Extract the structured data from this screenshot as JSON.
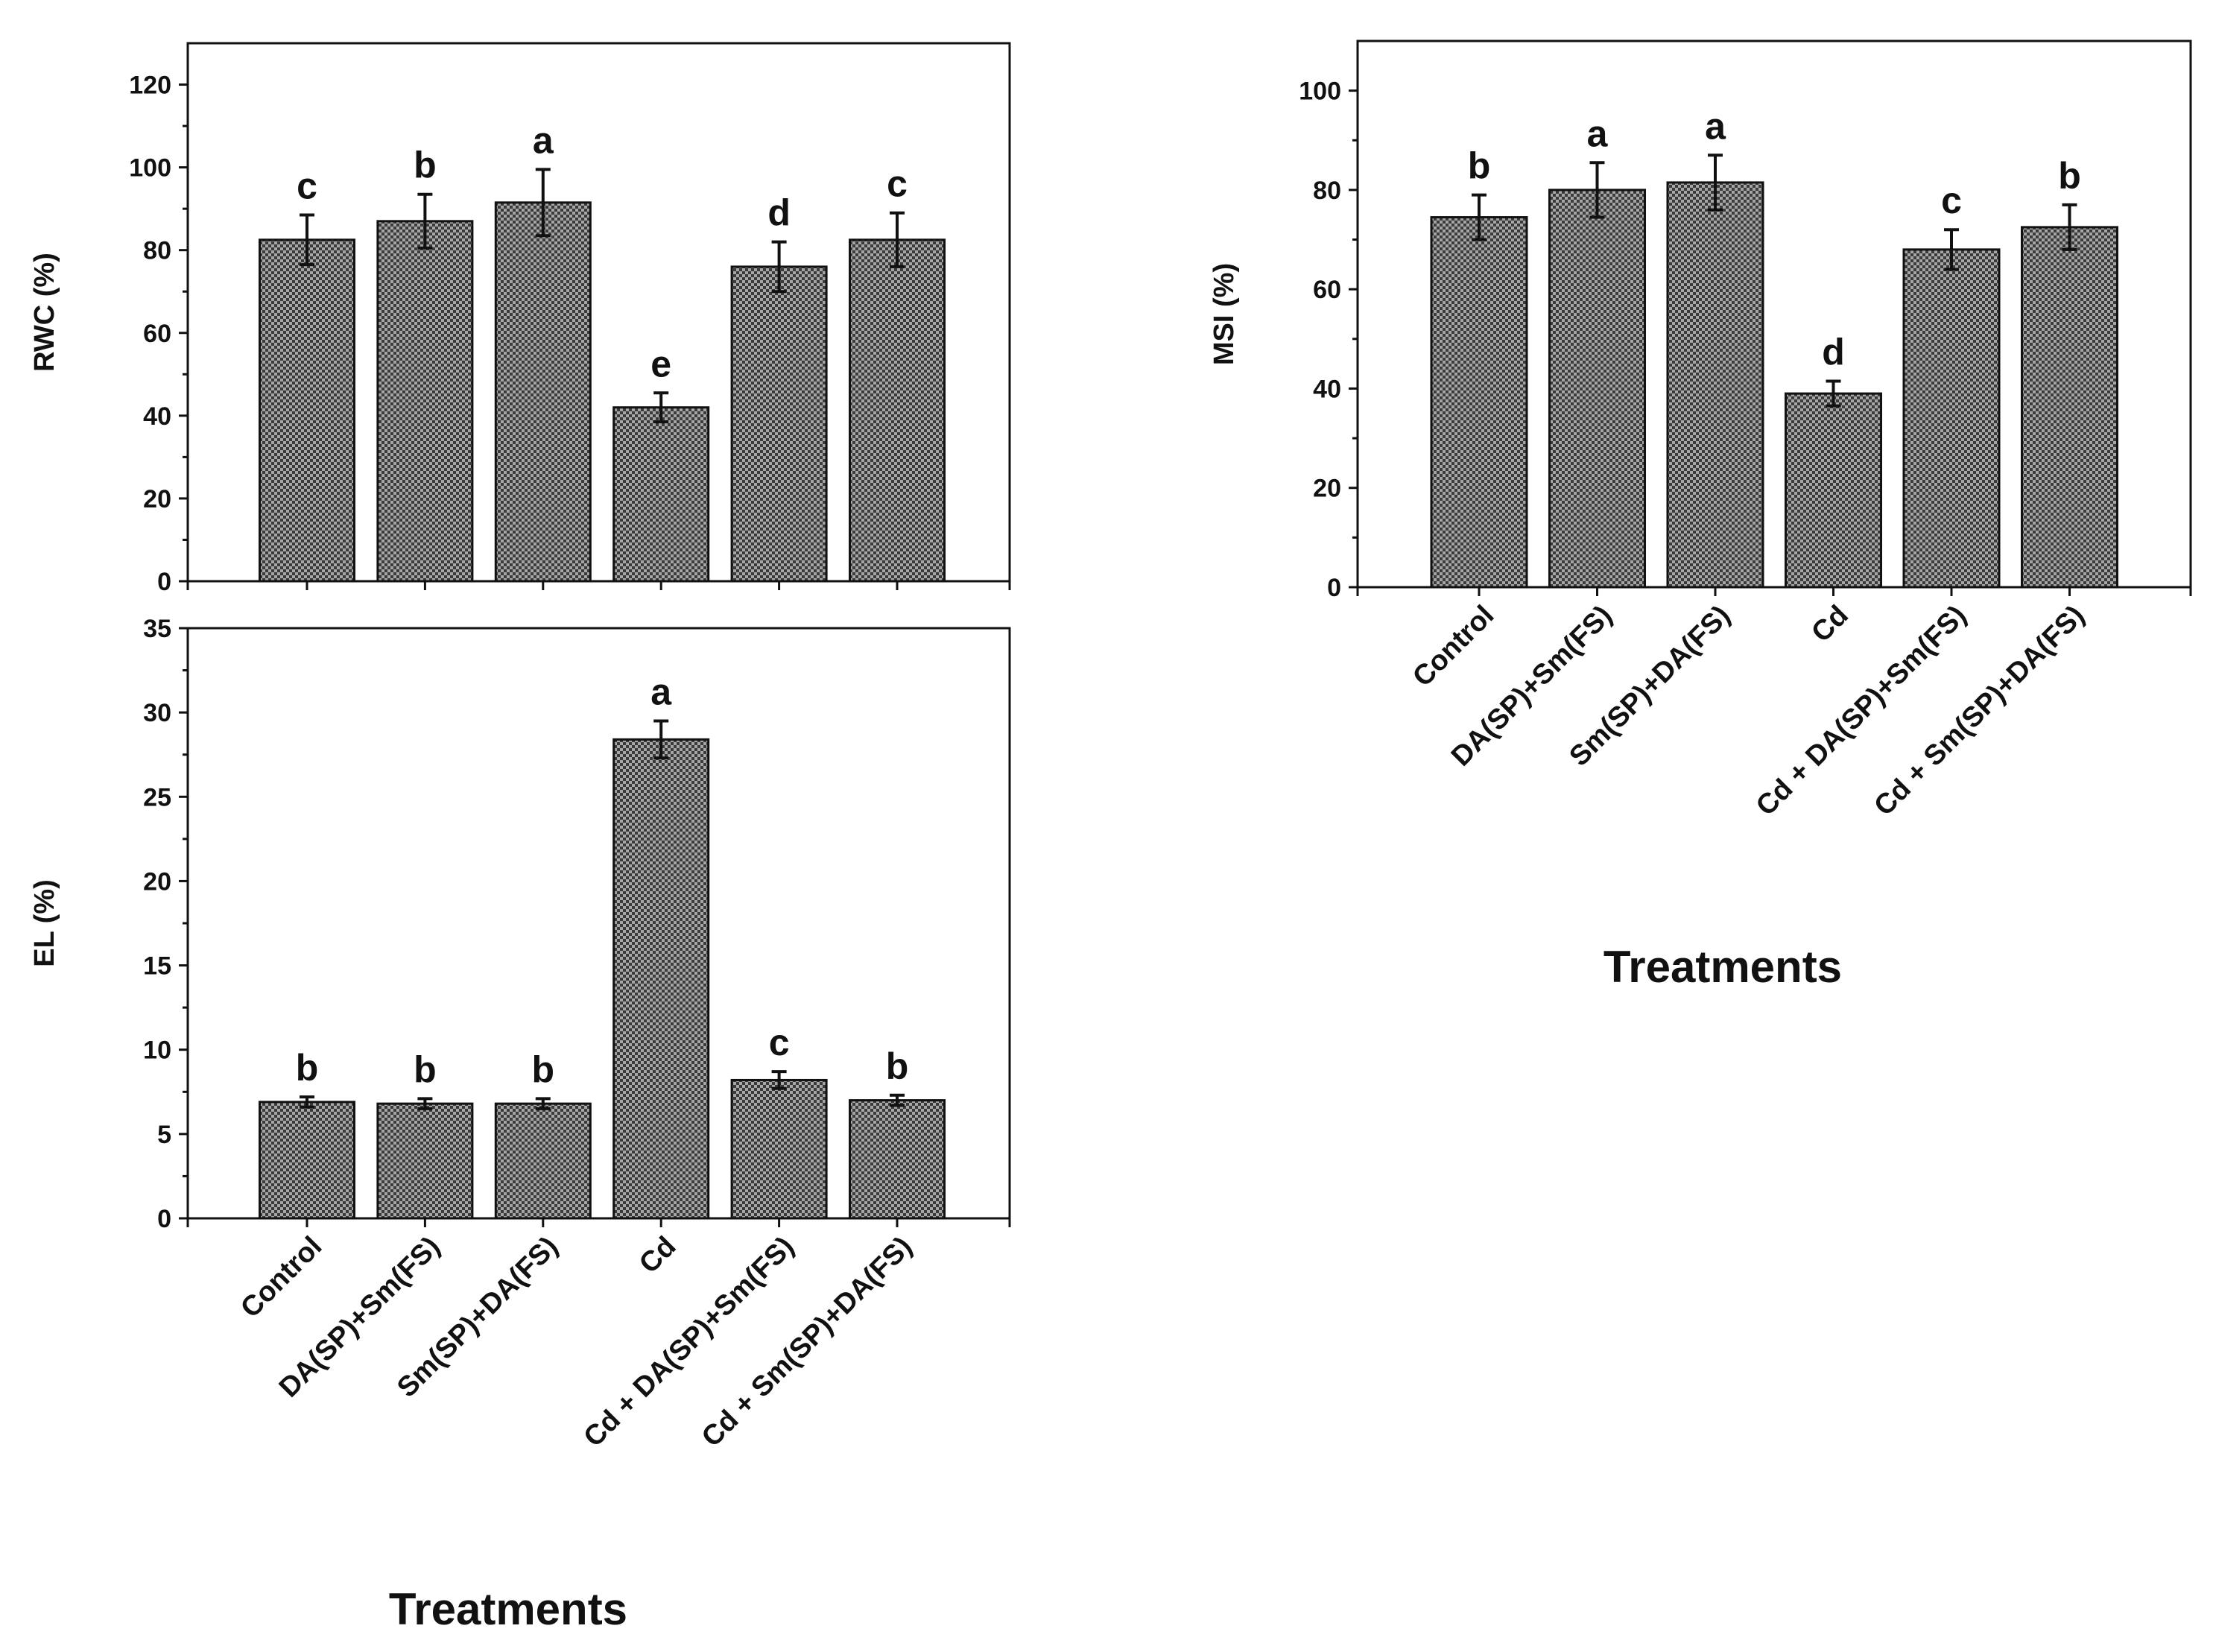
{
  "chart_data": [
    {
      "id": "rwc",
      "type": "bar",
      "ylabel": "RWC (%)",
      "xlabel": "",
      "ylim": [
        0,
        130
      ],
      "yticks": [
        0,
        20,
        40,
        60,
        80,
        100,
        120
      ],
      "categories": [
        "Control",
        "DA(SP)+Sm(FS)",
        "Sm(SP)+DA(FS)",
        "Cd",
        "Cd + DA(SP)+Sm(FS)",
        "Cd + Sm(SP)+DA(FS)"
      ],
      "show_category_labels": false,
      "values": [
        82.5,
        87.0,
        91.5,
        42.0,
        76.0,
        82.5
      ],
      "errors": [
        6.0,
        6.5,
        8.0,
        3.5,
        6.0,
        6.5
      ],
      "significance": [
        "c",
        "b",
        "a",
        "e",
        "d",
        "c"
      ]
    },
    {
      "id": "el",
      "type": "bar",
      "ylabel": "EL (%)",
      "xlabel": "Treatments",
      "ylim": [
        0,
        35
      ],
      "yticks": [
        0,
        5,
        10,
        15,
        20,
        25,
        30,
        35
      ],
      "categories": [
        "Control",
        "DA(SP)+Sm(FS)",
        "Sm(SP)+DA(FS)",
        "Cd",
        "Cd + DA(SP)+Sm(FS)",
        "Cd + Sm(SP)+DA(FS)"
      ],
      "show_category_labels": true,
      "values": [
        6.9,
        6.8,
        6.8,
        28.4,
        8.2,
        7.0
      ],
      "errors": [
        0.3,
        0.3,
        0.3,
        1.1,
        0.5,
        0.3
      ],
      "significance": [
        "b",
        "b",
        "b",
        "a",
        "c",
        "b"
      ]
    },
    {
      "id": "msi",
      "type": "bar",
      "ylabel": "MSI (%)",
      "xlabel": "Treatments",
      "ylim": [
        0,
        110
      ],
      "yticks": [
        0,
        20,
        40,
        60,
        80,
        100
      ],
      "categories": [
        "Control",
        "DA(SP)+Sm(FS)",
        "Sm(SP)+DA(FS)",
        "Cd",
        "Cd + DA(SP)+Sm(FS)",
        "Cd + Sm(SP)+DA(FS)"
      ],
      "show_category_labels": true,
      "values": [
        74.5,
        80.0,
        81.5,
        39.0,
        68.0,
        72.5
      ],
      "errors": [
        4.5,
        5.5,
        5.5,
        2.5,
        4.0,
        4.5
      ],
      "significance": [
        "b",
        "a",
        "a",
        "d",
        "c",
        "b"
      ]
    }
  ],
  "colors": {
    "bar_fill": "#8c8c8c",
    "bar_pattern": "#2a2a2a",
    "axis": "#111111"
  }
}
